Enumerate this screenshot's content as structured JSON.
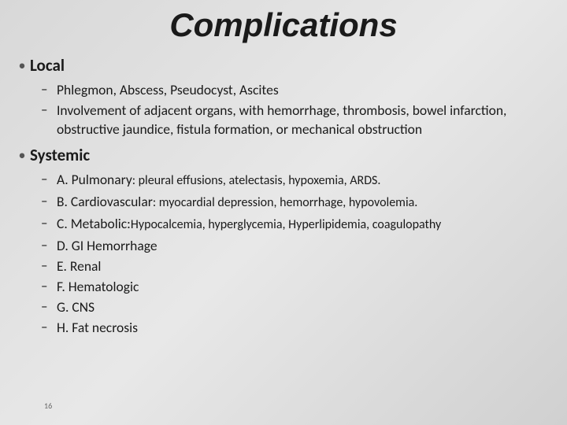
{
  "title": "Complications",
  "page_number": "16",
  "sections": [
    {
      "heading": "Local",
      "items": [
        {
          "text": "Phlegmon, Abscess, Pseudocyst,  Ascites"
        },
        {
          "text": "Involvement of adjacent organs, with hemorrhage, thrombosis, bowel infarction, obstructive jaundice, fistula formation, or mechanical obstruction"
        }
      ]
    },
    {
      "heading": "Systemic",
      "items": [
        {
          "lead": "A. Pulmonary",
          "tail": ": pleural effusions, atelectasis, hypoxemia, ARDS."
        },
        {
          "lead": "B. Cardiovascular",
          "tail": ": myocardial depression, hemorrhage, hypovolemia."
        },
        {
          "lead": "C. Metabolic:",
          "tail": "Hypocalcemia, hyperglycemia, Hyperlipidemia, coagulopathy"
        },
        {
          "text": "D. GI Hemorrhage"
        },
        {
          "text": "E. Renal"
        },
        {
          "text": "F. Hematologic"
        },
        {
          "text": "G. CNS"
        },
        {
          "text": "H. Fat necrosis"
        }
      ]
    }
  ],
  "colors": {
    "title": "#1a1a1a",
    "body": "#1a1a1a",
    "bullet": "#555555",
    "bg_start": "#d8d8d8",
    "bg_end": "#d0d0d0"
  },
  "fonts": {
    "title_size_pt": 42,
    "heading_size_pt": 21,
    "body_size_pt": 17.5,
    "tail_size_pt": 16
  }
}
